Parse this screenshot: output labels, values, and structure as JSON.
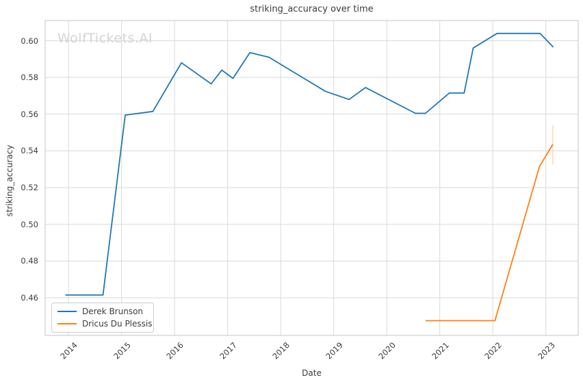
{
  "watermark": {
    "text": "WolfTickets.AI",
    "color": "#d4d4d4"
  },
  "colors": {
    "background": "#ffffff",
    "grid": "#d9d9d9",
    "border": "#cfcfcf",
    "text": "#3b3b3b"
  },
  "chart_data": {
    "type": "line",
    "title": "striking_accuracy over time",
    "xlabel": "Date",
    "ylabel": "striking_accuracy",
    "grid": true,
    "legend_position": "lower left",
    "xlim": [
      2013.56,
      2023.61
    ],
    "ylim": [
      0.4395,
      0.611
    ],
    "x_ticks": [
      2014,
      2015,
      2016,
      2017,
      2018,
      2019,
      2020,
      2021,
      2022,
      2023
    ],
    "y_ticks": [
      0.46,
      0.48,
      0.5,
      0.52,
      0.54,
      0.56,
      0.58,
      0.6
    ],
    "series": [
      {
        "name": "Derek Brunson",
        "color": "#1f77b4",
        "points": [
          [
            2013.94,
            0.4615
          ],
          [
            2014.65,
            0.4615
          ],
          [
            2015.07,
            0.5595
          ],
          [
            2015.59,
            0.5615
          ],
          [
            2016.13,
            0.588
          ],
          [
            2016.69,
            0.5765
          ],
          [
            2016.89,
            0.584
          ],
          [
            2017.1,
            0.5795
          ],
          [
            2017.42,
            0.5935
          ],
          [
            2017.78,
            0.591
          ],
          [
            2018.84,
            0.5725
          ],
          [
            2019.29,
            0.568
          ],
          [
            2019.6,
            0.5745
          ],
          [
            2020.54,
            0.5605
          ],
          [
            2020.73,
            0.5605
          ],
          [
            2021.18,
            0.5715
          ],
          [
            2021.46,
            0.5715
          ],
          [
            2021.63,
            0.596
          ],
          [
            2022.08,
            0.604
          ],
          [
            2022.89,
            0.604
          ],
          [
            2023.14,
            0.5965
          ]
        ]
      },
      {
        "name": "Dricus Du Plessis",
        "color": "#ff7f0e",
        "points": [
          [
            2020.73,
            0.4475
          ],
          [
            2022.04,
            0.4475
          ],
          [
            2022.88,
            0.5315
          ],
          [
            2023.13,
            0.5435
          ]
        ],
        "error_bar": {
          "x": 2023.13,
          "y_low": 0.5325,
          "y_high": 0.554,
          "color": "#ffd6ae"
        }
      }
    ]
  }
}
